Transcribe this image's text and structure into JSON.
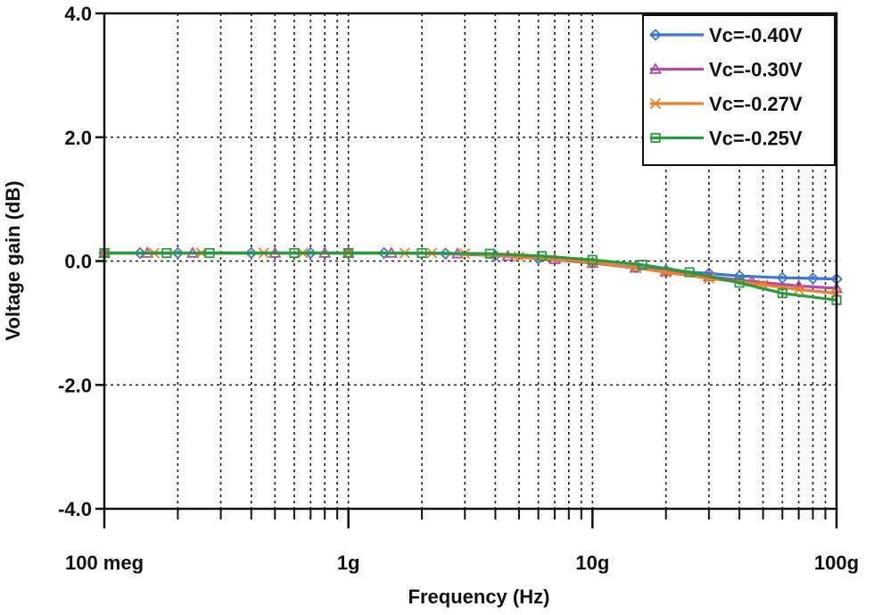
{
  "chart_data": {
    "type": "line",
    "title": "",
    "xlabel": "Frequency (Hz)",
    "ylabel": "Voltage gain (dB)",
    "xscale": "log",
    "xlim": [
      100000000,
      100000000000
    ],
    "ylim": [
      -4.0,
      4.0
    ],
    "x_ticks": [
      {
        "value": 100000000,
        "label": "100 meg"
      },
      {
        "value": 1000000000,
        "label": "1g"
      },
      {
        "value": 10000000000,
        "label": "10g"
      },
      {
        "value": 100000000000,
        "label": "100g"
      }
    ],
    "y_ticks": [
      {
        "value": 4.0,
        "label": "4.0"
      },
      {
        "value": 2.0,
        "label": "2.0"
      },
      {
        "value": 0.0,
        "label": "0.0"
      },
      {
        "value": -2.0,
        "label": "-2.0"
      },
      {
        "value": -4.0,
        "label": "-4.0"
      }
    ],
    "grid": true,
    "legend_position": "top-right",
    "series": [
      {
        "name": "Vc=-0.40V",
        "color": "#3a78d4",
        "marker": "diamond",
        "x": [
          100000000,
          140000000,
          200000000,
          400000000,
          700000000,
          1000000000,
          1400000000,
          2500000000,
          4000000000,
          6000000000,
          10000000000,
          15000000000,
          20000000000,
          30000000000,
          40000000000,
          60000000000,
          80000000000,
          100000000000
        ],
        "values": [
          0.13,
          0.13,
          0.13,
          0.13,
          0.13,
          0.13,
          0.13,
          0.12,
          0.09,
          0.04,
          -0.03,
          -0.1,
          -0.15,
          -0.2,
          -0.24,
          -0.27,
          -0.28,
          -0.29
        ]
      },
      {
        "name": "Vc=-0.30V",
        "color": "#b04aa6",
        "marker": "triangle",
        "x": [
          100000000,
          150000000,
          230000000,
          500000000,
          800000000,
          1000000000,
          1500000000,
          2800000000,
          4500000000,
          7000000000,
          10000000000,
          15000000000,
          20000000000,
          30000000000,
          45000000000,
          70000000000,
          100000000000
        ],
        "values": [
          0.13,
          0.13,
          0.13,
          0.13,
          0.13,
          0.13,
          0.13,
          0.12,
          0.08,
          0.03,
          -0.03,
          -0.11,
          -0.17,
          -0.25,
          -0.33,
          -0.4,
          -0.44
        ]
      },
      {
        "name": "Vc=-0.27V",
        "color": "#f07f2a",
        "marker": "x",
        "x": [
          100000000,
          160000000,
          250000000,
          450000000,
          650000000,
          1000000000,
          1700000000,
          2200000000,
          3000000000,
          5000000000,
          10000000000,
          15000000000,
          20000000000,
          30000000000,
          50000000000,
          70000000000,
          100000000000
        ],
        "values": [
          0.13,
          0.13,
          0.13,
          0.13,
          0.13,
          0.13,
          0.13,
          0.13,
          0.12,
          0.07,
          -0.02,
          -0.11,
          -0.18,
          -0.28,
          -0.38,
          -0.46,
          -0.52
        ]
      },
      {
        "name": "Vc=-0.25V",
        "color": "#2a9a3e",
        "marker": "square",
        "x": [
          100000000,
          180000000,
          270000000,
          600000000,
          1000000000,
          2000000000,
          3800000000,
          6200000000,
          10000000000,
          16000000000,
          25000000000,
          40000000000,
          60000000000,
          100000000000
        ],
        "values": [
          0.13,
          0.13,
          0.13,
          0.13,
          0.13,
          0.13,
          0.12,
          0.08,
          0.02,
          -0.06,
          -0.18,
          -0.35,
          -0.52,
          -0.63
        ]
      }
    ]
  }
}
